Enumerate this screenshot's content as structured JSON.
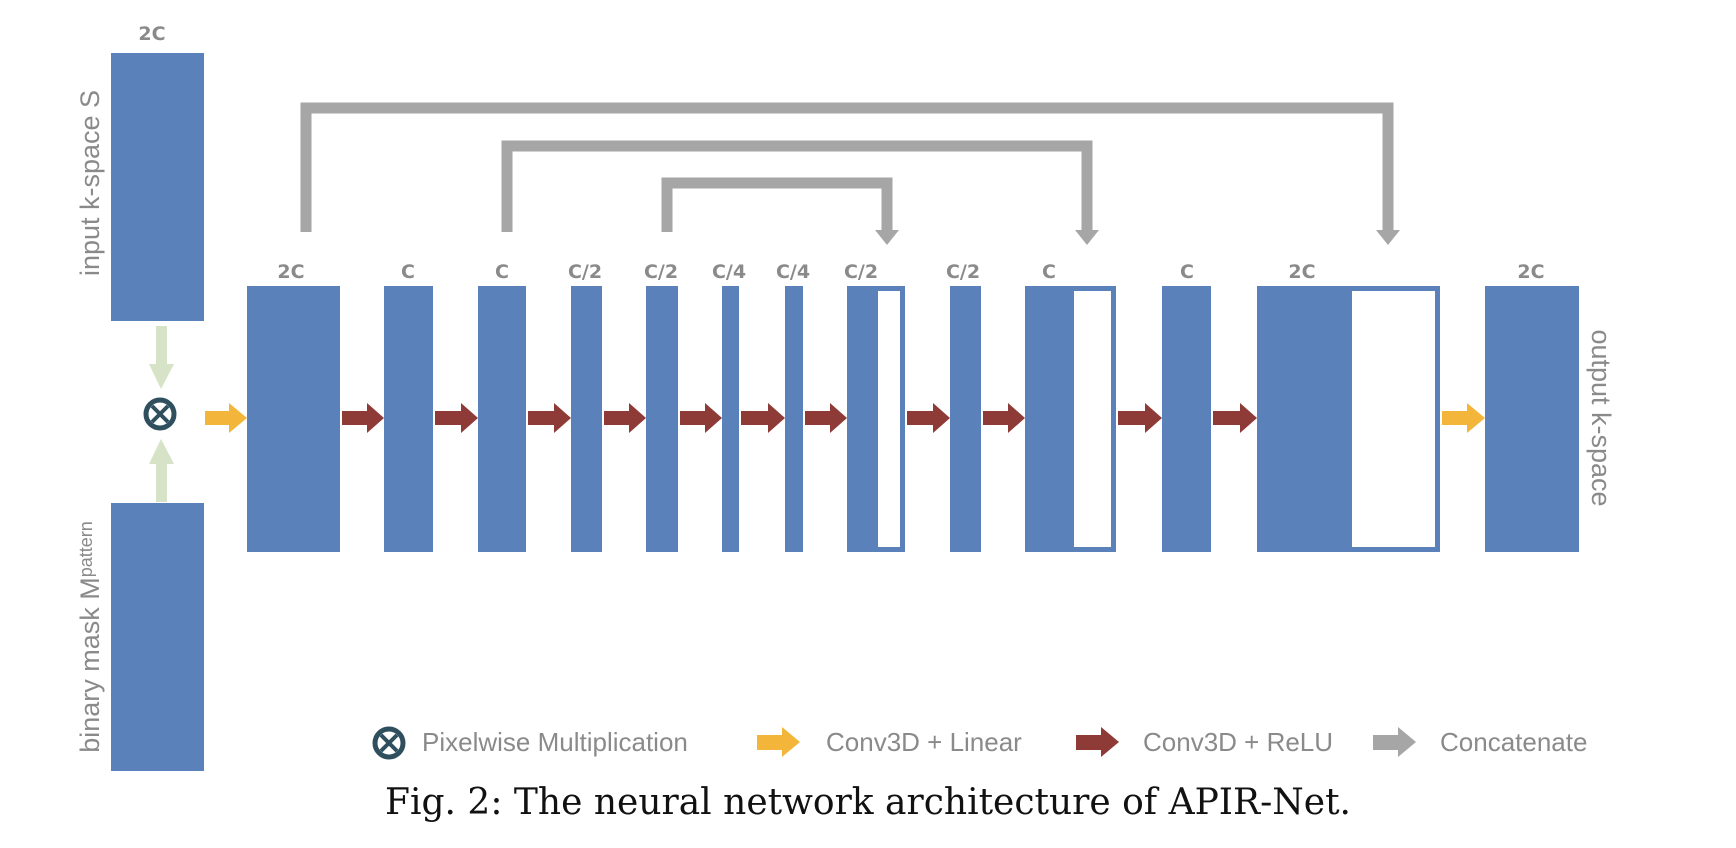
{
  "figure": {
    "caption": "Fig. 2: The neural network architecture of APIR-Net."
  },
  "inputs": {
    "kspace": {
      "label": "input k-space S",
      "channels": "2C"
    },
    "mask": {
      "label_main": "binary mask M",
      "label_sub": "pattern"
    }
  },
  "output": {
    "label": "output k-space"
  },
  "layers": [
    {
      "channels": "2C"
    },
    {
      "channels": "C"
    },
    {
      "channels": "C"
    },
    {
      "channels": "C/2"
    },
    {
      "channels": "C/2"
    },
    {
      "channels": "C/4"
    },
    {
      "channels": "C/4"
    },
    {
      "channels": "C/2",
      "concatenated": true
    },
    {
      "channels": "C/2"
    },
    {
      "channels": "C",
      "concatenated": true
    },
    {
      "channels": "C"
    },
    {
      "channels": "2C",
      "concatenated": true
    },
    {
      "channels": "2C"
    }
  ],
  "legend": {
    "multiply": "Pixelwise Multiplication",
    "conv_linear": "Conv3D + Linear",
    "conv_relu": "Conv3D + ReLU",
    "concat": "Concatenate"
  },
  "colors": {
    "block": "#5b81bb",
    "linear_arrow": "#f3b63b",
    "relu_arrow": "#8e3a36",
    "concat_arrow": "#a6a6a6",
    "mask_arrow": "#d6e3c6",
    "multiply_symbol": "#2f4f5f"
  }
}
